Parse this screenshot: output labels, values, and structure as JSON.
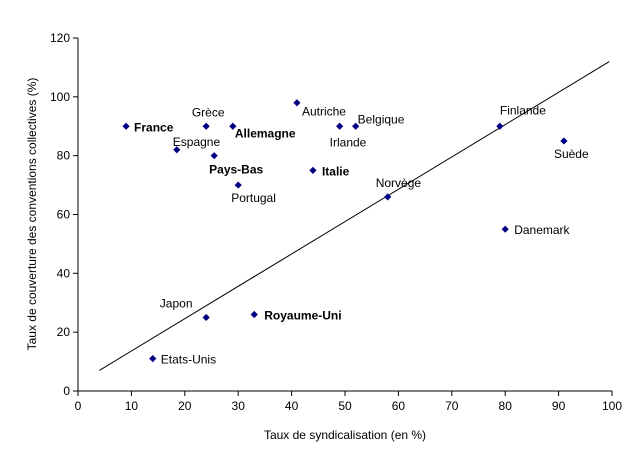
{
  "chart_data": {
    "type": "scatter",
    "xlabel": "Taux de syndicalisation (en %)",
    "ylabel": "Taux de couverture des conventions collectives (%)",
    "xlim": [
      0,
      100
    ],
    "ylim": [
      0,
      120
    ],
    "x_ticks": [
      "0",
      "10",
      "20",
      "30",
      "40",
      "50",
      "60",
      "70",
      "80",
      "90",
      "100"
    ],
    "y_ticks": [
      "0",
      "20",
      "40",
      "60",
      "80",
      "100",
      "120"
    ],
    "grid": false,
    "marker_color": "#000080",
    "points": [
      {
        "label": "France",
        "x": 9,
        "y": 90,
        "bold": true
      },
      {
        "label": "Grèce",
        "x": 24,
        "y": 90,
        "bold": false
      },
      {
        "label": "Allemagne",
        "x": 29,
        "y": 90,
        "bold": true
      },
      {
        "label": "Espagne",
        "x": 18.5,
        "y": 82,
        "bold": false
      },
      {
        "label": "Pays-Bas",
        "x": 25.5,
        "y": 80,
        "bold": true
      },
      {
        "label": "Portugal",
        "x": 30,
        "y": 70,
        "bold": false
      },
      {
        "label": "Autriche",
        "x": 41,
        "y": 98,
        "bold": false
      },
      {
        "label": "Irlande",
        "x": 49,
        "y": 90,
        "bold": false
      },
      {
        "label": "Belgique",
        "x": 52,
        "y": 90,
        "bold": false
      },
      {
        "label": "Italie",
        "x": 44,
        "y": 75,
        "bold": true
      },
      {
        "label": "Norvège",
        "x": 58,
        "y": 66,
        "bold": false
      },
      {
        "label": "Finlande",
        "x": 79,
        "y": 90,
        "bold": false
      },
      {
        "label": "Suède",
        "x": 91,
        "y": 85,
        "bold": false
      },
      {
        "label": "Danemark",
        "x": 80,
        "y": 55,
        "bold": false
      },
      {
        "label": "Japon",
        "x": 24,
        "y": 25,
        "bold": false
      },
      {
        "label": "Royaume-Uni",
        "x": 33,
        "y": 26,
        "bold": true
      },
      {
        "label": "Etats-Unis",
        "x": 14,
        "y": 11,
        "bold": false
      }
    ],
    "trendline": {
      "x": [
        4,
        99.5
      ],
      "y": [
        7,
        112
      ]
    }
  }
}
